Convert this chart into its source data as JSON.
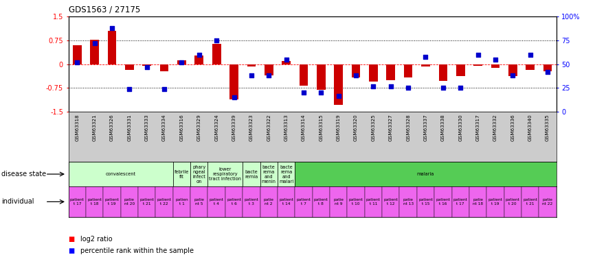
{
  "title": "GDS1563 / 27175",
  "samples": [
    "GSM63318",
    "GSM63321",
    "GSM63326",
    "GSM63331",
    "GSM63333",
    "GSM63334",
    "GSM63316",
    "GSM63329",
    "GSM63324",
    "GSM63339",
    "GSM63323",
    "GSM63322",
    "GSM63313",
    "GSM63314",
    "GSM63315",
    "GSM63319",
    "GSM63320",
    "GSM63325",
    "GSM63327",
    "GSM63328",
    "GSM63337",
    "GSM63338",
    "GSM63330",
    "GSM63317",
    "GSM63332",
    "GSM63336",
    "GSM63340",
    "GSM63335"
  ],
  "log2_ratio": [
    0.6,
    0.78,
    1.05,
    -0.18,
    -0.05,
    -0.22,
    0.12,
    0.28,
    0.65,
    -1.1,
    -0.08,
    -0.35,
    0.1,
    -0.68,
    -0.8,
    -1.28,
    -0.42,
    -0.55,
    -0.5,
    -0.42,
    -0.08,
    -0.52,
    -0.38,
    -0.05,
    -0.12,
    -0.38,
    -0.18,
    -0.22
  ],
  "percentile": [
    52,
    72,
    88,
    24,
    47,
    24,
    52,
    60,
    75,
    15,
    38,
    38,
    55,
    20,
    20,
    17,
    38,
    27,
    27,
    25,
    58,
    25,
    25,
    60,
    55,
    38,
    60,
    42
  ],
  "bar_color": "#cc0000",
  "dot_color": "#0000cc",
  "ylim": [
    -1.5,
    1.5
  ],
  "yticks_left": [
    -1.5,
    -0.75,
    0.0,
    0.75,
    1.5
  ],
  "yticks_right": [
    0,
    25,
    50,
    75,
    100
  ],
  "dotted_lines": [
    -0.75,
    0.75
  ],
  "ds_groups": [
    {
      "label": "convalescent",
      "start": 0,
      "end": 5,
      "color": "#ccffcc"
    },
    {
      "label": "febrile\nfit",
      "start": 6,
      "end": 6,
      "color": "#ccffcc"
    },
    {
      "label": "phary\nngeal\ninfect\non",
      "start": 7,
      "end": 7,
      "color": "#ccffcc"
    },
    {
      "label": "lower\nrespiratory\ntract infection",
      "start": 8,
      "end": 9,
      "color": "#ccffcc"
    },
    {
      "label": "bacte\nremia",
      "start": 10,
      "end": 10,
      "color": "#ccffcc"
    },
    {
      "label": "bacte\nrema\nand\nmenin",
      "start": 11,
      "end": 11,
      "color": "#ccffcc"
    },
    {
      "label": "bacte\nrema\nand\nmalari",
      "start": 12,
      "end": 12,
      "color": "#ccffcc"
    },
    {
      "label": "malaria",
      "start": 13,
      "end": 27,
      "color": "#55cc55"
    }
  ],
  "individual_labels": [
    "patient\nt 17",
    "patient\nt 18",
    "patient\nt 19",
    "patie\nnt 20",
    "patient\nt 21",
    "patient\nt 22",
    "patien\nt 1",
    "patie\nnt 5",
    "patient\nt 4",
    "patient\nt 6",
    "patient\nt 3",
    "patie\nnt 2",
    "patient\nt 14",
    "patient\nt 7",
    "patient\nt 8",
    "patie\nnt 9",
    "patient\nt 10",
    "patient\nt 11",
    "patient\nt 12",
    "patie\nnt 13",
    "patient\nt 15",
    "patient\nt 16",
    "patient\nt 17",
    "patie\nnt 18",
    "patient\nt 19",
    "patient\nt 20",
    "patient\nt 21",
    "patie\nnt 22"
  ],
  "ind_color": "#ee66ee",
  "figure_width": 8.66,
  "figure_height": 3.75
}
